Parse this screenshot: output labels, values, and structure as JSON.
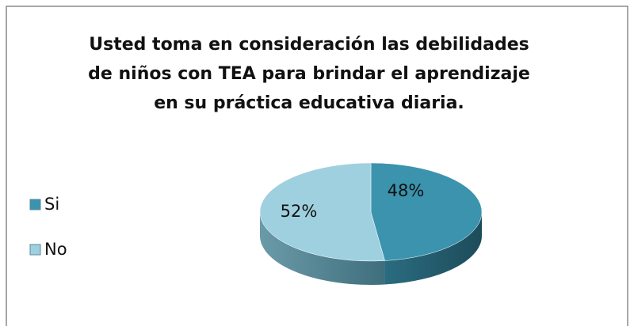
{
  "chart_data": {
    "type": "pie",
    "title": "Usted toma en consideración las debilidades de niños con TEA para brindar el aprendizaje en su práctica educativa diaria.",
    "categories": [
      "Si",
      "No"
    ],
    "values": [
      48,
      52
    ],
    "value_labels": [
      "48%",
      "52%"
    ],
    "colors": [
      "#3b93ad",
      "#9fd0e0"
    ],
    "legend": "left"
  }
}
